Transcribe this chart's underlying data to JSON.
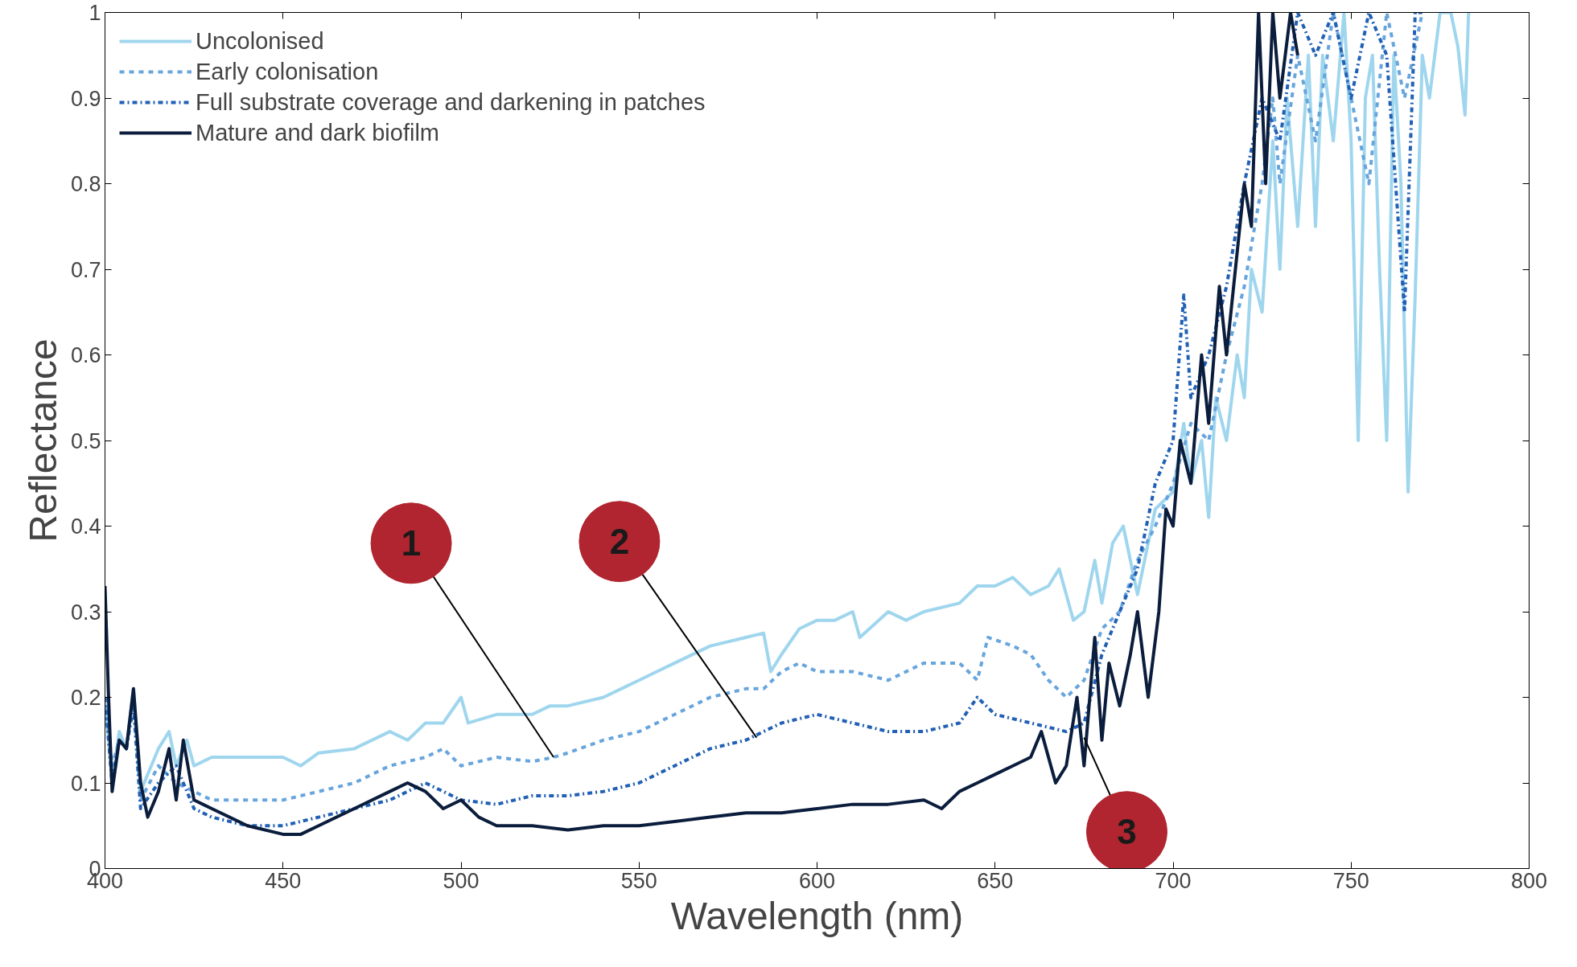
{
  "chart_data": {
    "type": "line",
    "xlabel": "Wavelength (nm)",
    "ylabel": "Reflectance",
    "xlim": [
      400,
      800
    ],
    "xticks": [
      400,
      450,
      500,
      550,
      600,
      650,
      700,
      750,
      800
    ],
    "ylim": [
      0,
      1
    ],
    "yticks": [
      0,
      0.1,
      0.2,
      0.3,
      0.4,
      0.5,
      0.6,
      0.7,
      0.8,
      0.9,
      1
    ],
    "grid": false,
    "legend": "top left",
    "marker": "none",
    "annotations": [
      {
        "text": "1",
        "x": 526,
        "y": 0.13
      },
      {
        "text": "2",
        "x": 583,
        "y": 0.153
      },
      {
        "text": "3",
        "x": 675,
        "y": 0.153
      }
    ],
    "series": [
      {
        "name": "Uncolonised",
        "color": "#9fd6ee",
        "line_style": "solid",
        "x": [
          400,
          402,
          404,
          406,
          408,
          410,
          412,
          415,
          418,
          420,
          423,
          425,
          430,
          440,
          450,
          455,
          460,
          470,
          480,
          485,
          490,
          495,
          500,
          502,
          510,
          520,
          525,
          530,
          540,
          545,
          550,
          555,
          560,
          570,
          580,
          585,
          587,
          590,
          595,
          600,
          605,
          610,
          612,
          620,
          625,
          630,
          640,
          645,
          650,
          655,
          660,
          665,
          668,
          672,
          675,
          678,
          680,
          683,
          686,
          690,
          695,
          700,
          703,
          705,
          708,
          710,
          712,
          715,
          718,
          720,
          722,
          725,
          728,
          730,
          732,
          735,
          738,
          740,
          742,
          745,
          748,
          750,
          752,
          754,
          756,
          758,
          760,
          762,
          764,
          766,
          768,
          770,
          772,
          775,
          778,
          780,
          782,
          783
        ],
        "values": [
          0.2,
          0.1,
          0.16,
          0.14,
          0.21,
          0.09,
          0.11,
          0.14,
          0.16,
          0.12,
          0.15,
          0.12,
          0.13,
          0.13,
          0.13,
          0.12,
          0.135,
          0.14,
          0.16,
          0.15,
          0.17,
          0.17,
          0.2,
          0.17,
          0.18,
          0.18,
          0.19,
          0.19,
          0.2,
          0.21,
          0.22,
          0.23,
          0.24,
          0.26,
          0.27,
          0.275,
          0.23,
          0.25,
          0.28,
          0.29,
          0.29,
          0.3,
          0.27,
          0.3,
          0.29,
          0.3,
          0.31,
          0.33,
          0.33,
          0.34,
          0.32,
          0.33,
          0.35,
          0.29,
          0.3,
          0.36,
          0.31,
          0.38,
          0.4,
          0.32,
          0.42,
          0.44,
          0.52,
          0.45,
          0.5,
          0.41,
          0.55,
          0.5,
          0.6,
          0.55,
          0.7,
          0.65,
          0.85,
          0.7,
          0.9,
          0.75,
          0.95,
          0.75,
          0.95,
          0.85,
          1.0,
          0.85,
          0.5,
          0.9,
          0.95,
          0.7,
          0.5,
          0.95,
          0.8,
          0.44,
          0.67,
          0.95,
          0.9,
          1.0,
          1.0,
          0.96,
          0.88,
          1.0
        ]
      },
      {
        "name": "Early colonisation",
        "color": "#68a5dc",
        "line_style": "dashed",
        "x": [
          400,
          402,
          404,
          406,
          408,
          410,
          415,
          420,
          425,
          430,
          440,
          450,
          460,
          470,
          480,
          490,
          495,
          500,
          510,
          520,
          526,
          530,
          540,
          550,
          560,
          570,
          580,
          585,
          590,
          595,
          600,
          610,
          620,
          630,
          640,
          645,
          648,
          655,
          660,
          665,
          670,
          675,
          680,
          685,
          690,
          695,
          700,
          705,
          710,
          715,
          720,
          725,
          728,
          730,
          735,
          740,
          745,
          750,
          755,
          760,
          765,
          770
        ],
        "values": [
          0.2,
          0.12,
          0.15,
          0.14,
          0.2,
          0.08,
          0.12,
          0.1,
          0.09,
          0.08,
          0.08,
          0.08,
          0.09,
          0.1,
          0.12,
          0.13,
          0.14,
          0.12,
          0.13,
          0.125,
          0.13,
          0.135,
          0.15,
          0.16,
          0.18,
          0.2,
          0.21,
          0.21,
          0.23,
          0.24,
          0.23,
          0.23,
          0.22,
          0.24,
          0.24,
          0.22,
          0.27,
          0.26,
          0.25,
          0.22,
          0.2,
          0.22,
          0.28,
          0.3,
          0.36,
          0.4,
          0.45,
          0.52,
          0.5,
          0.6,
          0.68,
          0.8,
          0.9,
          0.8,
          0.95,
          0.85,
          1.0,
          0.9,
          0.8,
          1.0,
          0.9,
          1.0
        ]
      },
      {
        "name": "Full substrate coverage and darkening in patches",
        "color": "#2160b4",
        "line_style": "dashdot",
        "x": [
          400,
          402,
          404,
          406,
          408,
          410,
          415,
          420,
          425,
          430,
          440,
          450,
          460,
          470,
          480,
          490,
          495,
          500,
          510,
          520,
          530,
          540,
          550,
          560,
          570,
          580,
          585,
          590,
          600,
          610,
          620,
          630,
          640,
          645,
          650,
          660,
          670,
          675,
          680,
          685,
          690,
          695,
          700,
          703,
          705,
          710,
          715,
          720,
          725,
          730,
          735,
          740,
          745,
          750,
          755,
          760,
          765,
          768,
          770
        ],
        "values": [
          0.2,
          0.1,
          0.15,
          0.14,
          0.19,
          0.07,
          0.1,
          0.12,
          0.07,
          0.06,
          0.05,
          0.05,
          0.06,
          0.07,
          0.08,
          0.1,
          0.09,
          0.08,
          0.075,
          0.085,
          0.085,
          0.09,
          0.1,
          0.12,
          0.14,
          0.15,
          0.16,
          0.17,
          0.18,
          0.17,
          0.16,
          0.16,
          0.17,
          0.2,
          0.18,
          0.17,
          0.16,
          0.17,
          0.25,
          0.3,
          0.35,
          0.45,
          0.5,
          0.67,
          0.55,
          0.6,
          0.68,
          0.8,
          0.9,
          0.85,
          1.0,
          0.95,
          1.0,
          0.9,
          1.0,
          0.95,
          0.65,
          1.0,
          1.0
        ]
      },
      {
        "name": "Mature and dark biofilm",
        "color": "#0b1d3c",
        "line_style": "solid",
        "x": [
          400,
          401,
          402,
          404,
          406,
          408,
          410,
          412,
          415,
          418,
          420,
          422,
          425,
          430,
          440,
          450,
          455,
          460,
          470,
          480,
          485,
          490,
          495,
          500,
          505,
          510,
          520,
          530,
          540,
          550,
          560,
          570,
          580,
          590,
          600,
          610,
          620,
          630,
          635,
          640,
          645,
          650,
          655,
          660,
          663,
          667,
          670,
          673,
          675,
          678,
          680,
          682,
          685,
          688,
          690,
          693,
          696,
          698,
          700,
          702,
          705,
          708,
          710,
          713,
          715,
          718,
          720,
          722,
          724,
          726,
          728,
          730,
          733,
          735
        ],
        "values": [
          0.33,
          0.2,
          0.09,
          0.15,
          0.14,
          0.21,
          0.1,
          0.06,
          0.09,
          0.14,
          0.08,
          0.15,
          0.08,
          0.07,
          0.05,
          0.04,
          0.04,
          0.05,
          0.07,
          0.09,
          0.1,
          0.09,
          0.07,
          0.08,
          0.06,
          0.05,
          0.05,
          0.045,
          0.05,
          0.05,
          0.055,
          0.06,
          0.065,
          0.065,
          0.07,
          0.075,
          0.075,
          0.08,
          0.07,
          0.09,
          0.1,
          0.11,
          0.12,
          0.13,
          0.16,
          0.1,
          0.12,
          0.2,
          0.12,
          0.27,
          0.15,
          0.24,
          0.19,
          0.25,
          0.3,
          0.2,
          0.3,
          0.42,
          0.4,
          0.5,
          0.45,
          0.6,
          0.52,
          0.68,
          0.6,
          0.72,
          0.8,
          0.75,
          1.0,
          0.8,
          1.0,
          0.9,
          1.0,
          0.95
        ]
      }
    ]
  }
}
